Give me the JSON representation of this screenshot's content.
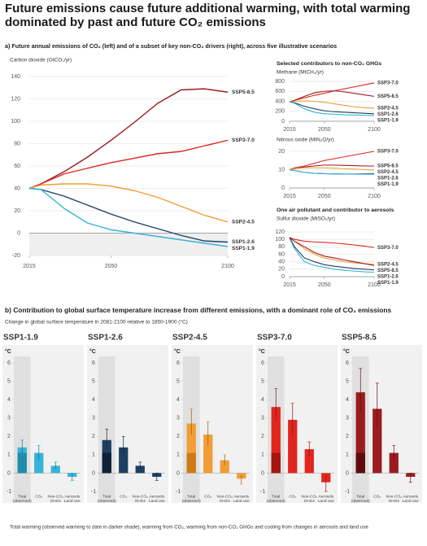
{
  "title": "Future emissions cause future additional warming, with total warming dominated by past and future CO₂ emissions",
  "panel_a_title": "a) Future annual emissions of CO₂ (left) and of a subset of key non-CO₂ drivers (right), across five illustrative scenarios",
  "panel_a_ghg_subtitle": "Selected contributors to non-CO₂ GHGs",
  "panel_a_aerosol_subtitle": "One air pollutant and contributor to aerosols",
  "panel_b_title": "b) Contribution to global surface temperature increase from different emissions, with a dominant role of CO₂ emissions",
  "panel_b_subtitle": "Change in global surface temperature in 2081-2100 relative to 1850-1900 (°C)",
  "footnote": "Total warming (observed warming to date in darker shade), warming from CO₂, warming from non-CO₂ GHGs and cooling from changes in aerosols and land use",
  "chart_data": [
    {
      "type": "line",
      "ylabel": "Carbon dioxide (GtCO₂/yr)",
      "x": [
        2015,
        2020,
        2030,
        2040,
        2050,
        2060,
        2070,
        2080,
        2090,
        2100
      ],
      "xlim": [
        2015,
        2100
      ],
      "xticks": [
        2015,
        2050,
        2100
      ],
      "ylim": [
        -20,
        140
      ],
      "yticks": [
        -20,
        0,
        20,
        40,
        60,
        80,
        100,
        120,
        140
      ],
      "grid": true,
      "series": [
        {
          "name": "SSP5-8.5",
          "color": "#9b1c20",
          "values": [
            40,
            44,
            55,
            68,
            83,
            99,
            116,
            128,
            129,
            126
          ]
        },
        {
          "name": "SSP3-7.0",
          "color": "#e1251f",
          "values": [
            40,
            44,
            53,
            58,
            63,
            67,
            71,
            73,
            78,
            83
          ]
        },
        {
          "name": "SSP2-4.5",
          "color": "#f29d35",
          "values": [
            40,
            43,
            44,
            44,
            42,
            38,
            32,
            24,
            16,
            10
          ]
        },
        {
          "name": "SSP1-2.6",
          "color": "#1d3f63",
          "values": [
            40,
            39,
            33,
            25,
            17,
            10,
            4,
            -2,
            -7,
            -8
          ]
        },
        {
          "name": "SSP1-1.9",
          "color": "#35b4d8",
          "values": [
            40,
            39,
            22,
            9,
            3,
            0,
            -3,
            -6,
            -9,
            -12
          ]
        }
      ]
    },
    {
      "type": "line",
      "ylabel": "Methane (MtCH₄/yr)",
      "x": [
        2015,
        2020,
        2030,
        2040,
        2050,
        2060,
        2070,
        2080,
        2090,
        2100
      ],
      "xlim": [
        2015,
        2100
      ],
      "xticks": [
        2015,
        2050,
        2100
      ],
      "ylim": [
        0,
        800
      ],
      "yticks": [
        0,
        200,
        400,
        600,
        800
      ],
      "grid": true,
      "series": [
        {
          "name": "SSP3-7.0",
          "color": "#e1251f",
          "values": [
            390,
            420,
            470,
            520,
            560,
            610,
            650,
            690,
            730,
            770
          ]
        },
        {
          "name": "SSP5-8.5",
          "color": "#9b1c20",
          "values": [
            390,
            420,
            500,
            570,
            600,
            610,
            590,
            560,
            530,
            500
          ]
        },
        {
          "name": "SSP2-4.5",
          "color": "#f29d35",
          "values": [
            390,
            400,
            410,
            400,
            380,
            350,
            320,
            290,
            270,
            260
          ]
        },
        {
          "name": "SSP1-2.6",
          "color": "#1d3f63",
          "values": [
            390,
            370,
            300,
            250,
            210,
            190,
            180,
            170,
            160,
            150
          ]
        },
        {
          "name": "SSP1-1.9",
          "color": "#35b4d8",
          "values": [
            390,
            360,
            250,
            180,
            150,
            140,
            130,
            125,
            120,
            115
          ]
        }
      ]
    },
    {
      "type": "line",
      "ylabel": "Nitrous oxide (MtN₂O/yr)",
      "x": [
        2015,
        2020,
        2030,
        2040,
        2050,
        2060,
        2070,
        2080,
        2090,
        2100
      ],
      "xlim": [
        2015,
        2100
      ],
      "xticks": [
        2015,
        2050,
        2100
      ],
      "ylim": [
        0,
        22
      ],
      "yticks": [
        0,
        10,
        20
      ],
      "grid": true,
      "series": [
        {
          "name": "SSP3-7.0",
          "color": "#e1251f",
          "values": [
            10,
            11,
            12,
            13.5,
            15,
            16,
            17,
            18,
            19,
            20
          ]
        },
        {
          "name": "SSP5-8.5",
          "color": "#9b1c20",
          "values": [
            10,
            10.5,
            11.5,
            12,
            12.5,
            12.5,
            12.3,
            12.2,
            12,
            12
          ]
        },
        {
          "name": "SSP2-4.5",
          "color": "#f29d35",
          "values": [
            10,
            10.5,
            11,
            11,
            11,
            10.8,
            10.5,
            10.3,
            10,
            9.8
          ]
        },
        {
          "name": "SSP1-2.6",
          "color": "#1d3f63",
          "values": [
            10,
            9.5,
            8.5,
            8,
            7.8,
            7.7,
            7.6,
            7.6,
            7.7,
            7.8
          ]
        },
        {
          "name": "SSP1-1.9",
          "color": "#35b4d8",
          "values": [
            10,
            9.5,
            8.5,
            8,
            7.8,
            7.7,
            7.6,
            7.5,
            7.5,
            7.5
          ]
        }
      ]
    },
    {
      "type": "line",
      "ylabel": "Sulfur dioxide (MtSO₂/yr)",
      "x": [
        2015,
        2020,
        2030,
        2040,
        2050,
        2060,
        2070,
        2080,
        2090,
        2100
      ],
      "xlim": [
        2015,
        2100
      ],
      "xticks": [
        2015,
        2050,
        2100
      ],
      "ylim": [
        0,
        120
      ],
      "yticks": [
        0,
        20,
        40,
        60,
        80,
        100,
        120
      ],
      "grid": true,
      "series": [
        {
          "name": "SSP3-7.0",
          "color": "#e1251f",
          "values": [
            105,
            100,
            95,
            93,
            92,
            90,
            88,
            85,
            82,
            78
          ]
        },
        {
          "name": "SSP2-4.5",
          "color": "#f29d35",
          "values": [
            105,
            95,
            75,
            60,
            50,
            45,
            40,
            37,
            35,
            33
          ]
        },
        {
          "name": "SSP5-8.5",
          "color": "#9b1c20",
          "values": [
            105,
            95,
            80,
            65,
            55,
            50,
            45,
            40,
            35,
            30
          ]
        },
        {
          "name": "SSP1-1.9",
          "color": "#35b4d8",
          "values": [
            105,
            75,
            40,
            30,
            25,
            20,
            17,
            15,
            13,
            12
          ]
        },
        {
          "name": "SSP1-2.6",
          "color": "#1d3f63",
          "values": [
            105,
            80,
            50,
            40,
            32,
            28,
            25,
            22,
            20,
            18
          ]
        }
      ]
    },
    {
      "type": "bar",
      "title": "SSP1-1.9",
      "ylabel": "°C",
      "color": "#35b4d8",
      "observed_color": "#1f8caa",
      "categories": [
        [
          "Total",
          "(observed)"
        ],
        [
          "CO₂"
        ],
        [
          "Non-CO₂",
          "GHGs"
        ],
        [
          "Aerosols",
          "Land use"
        ]
      ],
      "values": [
        1.4,
        1.1,
        0.4,
        -0.2
      ],
      "error_low": [
        1.0,
        0.7,
        0.2,
        -0.4
      ],
      "error_high": [
        1.8,
        1.5,
        0.6,
        0.0
      ],
      "observed_value": 1.1,
      "ylim": [
        -1,
        6
      ],
      "yticks": [
        -1,
        0,
        1,
        2,
        3,
        4,
        5,
        6
      ]
    },
    {
      "type": "bar",
      "title": "SSP1-2.6",
      "ylabel": "°C",
      "color": "#1d3f63",
      "observed_color": "#0e2238",
      "categories": [
        [
          "Total",
          "(observed)"
        ],
        [
          "CO₂"
        ],
        [
          "Non-CO₂",
          "GHGs"
        ],
        [
          "Aerosols",
          "Land use"
        ]
      ],
      "values": [
        1.8,
        1.4,
        0.4,
        -0.2
      ],
      "error_low": [
        1.3,
        1.0,
        0.2,
        -0.4
      ],
      "error_high": [
        2.4,
        2.0,
        0.6,
        0.0
      ],
      "observed_value": 1.1,
      "ylim": [
        -1,
        6
      ],
      "yticks": [
        -1,
        0,
        1,
        2,
        3,
        4,
        5,
        6
      ]
    },
    {
      "type": "bar",
      "title": "SSP2-4.5",
      "ylabel": "°C",
      "color": "#f29d35",
      "observed_color": "#cf7a17",
      "categories": [
        [
          "Total",
          "(observed)"
        ],
        [
          "CO₂"
        ],
        [
          "Non-CO₂",
          "GHGs"
        ],
        [
          "Aerosols",
          "Land use"
        ]
      ],
      "values": [
        2.7,
        2.1,
        0.7,
        -0.3
      ],
      "error_low": [
        2.1,
        1.5,
        0.4,
        -0.6
      ],
      "error_high": [
        3.5,
        2.8,
        1.0,
        -0.1
      ],
      "observed_value": 1.1,
      "ylim": [
        -1,
        6
      ],
      "yticks": [
        -1,
        0,
        1,
        2,
        3,
        4,
        5,
        6
      ]
    },
    {
      "type": "bar",
      "title": "SSP3-7.0",
      "ylabel": "°C",
      "color": "#e1251f",
      "observed_color": "#a8130f",
      "categories": [
        [
          "Total",
          "(observed)"
        ],
        [
          "CO₂"
        ],
        [
          "Non-CO₂",
          "GHGs"
        ],
        [
          "Aerosols",
          "Land use"
        ]
      ],
      "values": [
        3.6,
        2.9,
        1.3,
        -0.5
      ],
      "error_low": [
        2.8,
        2.1,
        0.9,
        -1.0
      ],
      "error_high": [
        4.6,
        3.8,
        1.7,
        -0.1
      ],
      "observed_value": 1.1,
      "ylim": [
        -1,
        6
      ],
      "yticks": [
        -1,
        0,
        1,
        2,
        3,
        4,
        5,
        6
      ]
    },
    {
      "type": "bar",
      "title": "SSP5-8.5",
      "ylabel": "°C",
      "color": "#9b1c20",
      "observed_color": "#5e0b0e",
      "categories": [
        [
          "Total",
          "(observed)"
        ],
        [
          "CO₂"
        ],
        [
          "Non-CO₂",
          "GHGs"
        ],
        [
          "Aerosols",
          "Land use"
        ]
      ],
      "values": [
        4.4,
        3.5,
        1.1,
        -0.2
      ],
      "error_low": [
        3.3,
        2.5,
        0.8,
        -0.5
      ],
      "error_high": [
        5.7,
        4.9,
        1.5,
        0.0
      ],
      "observed_value": 1.1,
      "ylim": [
        -1,
        6
      ],
      "yticks": [
        -1,
        0,
        1,
        2,
        3,
        4,
        5,
        6
      ]
    }
  ]
}
